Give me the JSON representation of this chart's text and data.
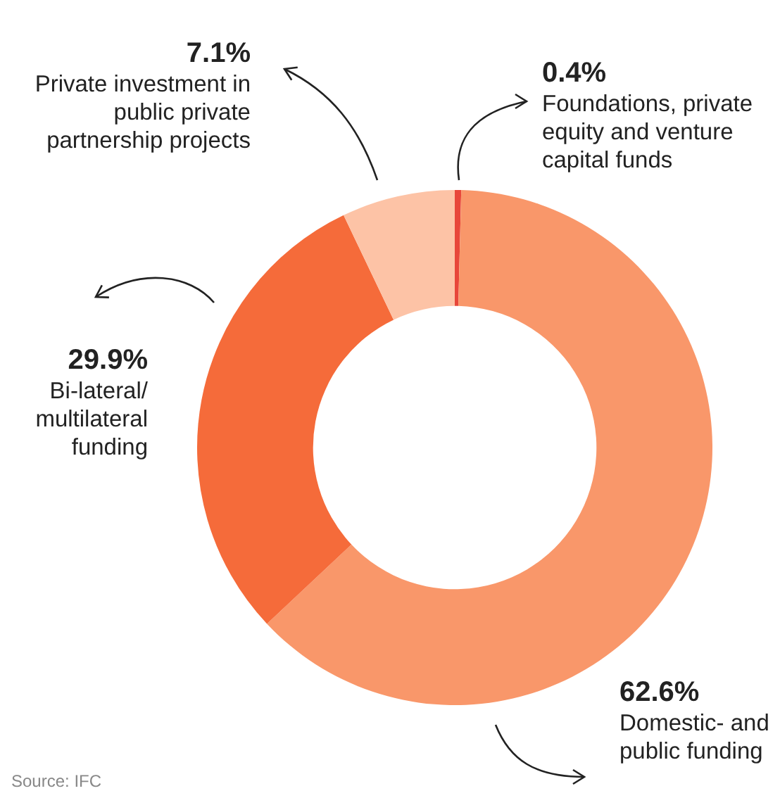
{
  "chart_data": {
    "type": "donut",
    "categories": [
      "Foundations, private equity and venture capital funds",
      "Domestic- and public funding",
      "Bi-lateral/ multilateral funding",
      "Private investment in public private partnership projects"
    ],
    "values": [
      0.4,
      62.6,
      29.9,
      7.1
    ],
    "value_labels": [
      "0.4%",
      "62.6%",
      "29.9%",
      "7.1%"
    ],
    "colors": [
      "#e8473a",
      "#f9976a",
      "#f56b3a",
      "#fdc3a6"
    ],
    "legend": false,
    "annotations": [
      "Source: IFC"
    ]
  }
}
